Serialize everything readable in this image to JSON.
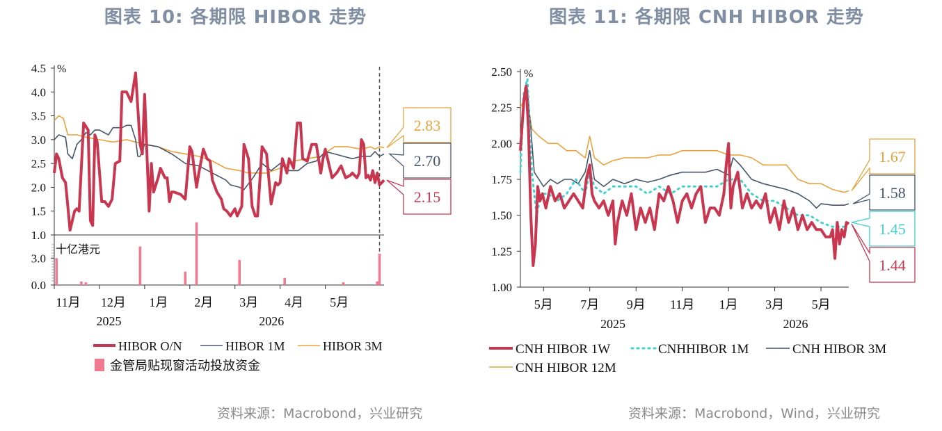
{
  "left": {
    "title": "图表  10:  各期限 HIBOR 走势",
    "source": "资料来源：Macrobond，兴业研究",
    "chart_data": {
      "type": "line",
      "ylabel_unit": "%",
      "ylim": [
        1.0,
        4.5
      ],
      "yticks": [
        "4.5",
        "4.0",
        "3.5",
        "3.0",
        "2.5",
        "2.0",
        "1.5",
        "1.0"
      ],
      "xlim": [
        0,
        7.3
      ],
      "x_axis_note": "x = months elapsed since the 11月 2025 tick",
      "months": [
        {
          "label": "11月",
          "x": 0
        },
        {
          "label": "12月",
          "x": 1
        },
        {
          "label": "1月",
          "x": 2
        },
        {
          "label": "2月",
          "x": 3
        },
        {
          "label": "3月",
          "x": 4
        },
        {
          "label": "4月",
          "x": 5
        },
        {
          "label": "5月",
          "x": 6
        }
      ],
      "years": [
        {
          "label": "2025",
          "x": 0.9
        },
        {
          "label": "2026",
          "x": 4.5
        }
      ],
      "vline_x": 7.2,
      "series": [
        {
          "name": "HIBOR O/N",
          "color": "#c8374f",
          "width": 4,
          "x": [
            0,
            0.05,
            0.1,
            0.18,
            0.25,
            0.3,
            0.35,
            0.45,
            0.5,
            0.55,
            0.65,
            0.75,
            0.8,
            0.85,
            0.9,
            0.95,
            1.05,
            1.12,
            1.2,
            1.28,
            1.35,
            1.45,
            1.5,
            1.6,
            1.7,
            1.8,
            1.9,
            1.95,
            2.0,
            2.1,
            2.15,
            2.2,
            2.3,
            2.35,
            2.45,
            2.5,
            2.55,
            2.6,
            2.65,
            2.8,
            2.9,
            3.0,
            3.05,
            3.15,
            3.2,
            3.3,
            3.38,
            3.45,
            3.5,
            3.6,
            3.7,
            3.75,
            3.82,
            3.9,
            4.0,
            4.05,
            4.15,
            4.2,
            4.3,
            4.38,
            4.45,
            4.5,
            4.6,
            4.7,
            4.8,
            4.9,
            4.95,
            5.0,
            5.05,
            5.15,
            5.2,
            5.3,
            5.38,
            5.45,
            5.5,
            5.6,
            5.7,
            5.8,
            5.9,
            5.95,
            6.0,
            6.15,
            6.25,
            6.35,
            6.45,
            6.55,
            6.6,
            6.7,
            6.75,
            6.8,
            6.85,
            6.9,
            6.95,
            7.0,
            7.05,
            7.1,
            7.15,
            7.2,
            7.25,
            7.3
          ],
          "y": [
            2.3,
            2.7,
            2.6,
            2.2,
            2.1,
            1.6,
            1.1,
            1.5,
            1.55,
            1.5,
            3.35,
            3.2,
            1.3,
            1.2,
            3.1,
            2.95,
            1.7,
            1.7,
            1.6,
            1.75,
            2.5,
            2.55,
            4.0,
            4.0,
            3.8,
            4.4,
            2.9,
            2.7,
            3.95,
            1.5,
            2.5,
            1.9,
            2.2,
            2.4,
            2.2,
            2.2,
            1.7,
            1.9,
            1.9,
            1.85,
            1.75,
            2.85,
            2.75,
            2.0,
            2.3,
            2.8,
            2.6,
            2.55,
            2.15,
            1.9,
            1.75,
            1.55,
            1.5,
            1.4,
            1.55,
            1.4,
            1.6,
            2.9,
            2.6,
            1.6,
            1.4,
            1.4,
            2.85,
            2.7,
            1.65,
            2.1,
            2.05,
            2.1,
            2.6,
            2.3,
            2.6,
            2.4,
            3.35,
            3.35,
            2.6,
            2.55,
            2.9,
            2.9,
            2.3,
            2.6,
            2.8,
            2.2,
            2.3,
            2.45,
            2.2,
            2.25,
            2.3,
            2.2,
            2.3,
            3.0,
            2.9,
            2.2,
            2.25,
            2.15,
            2.35,
            2.1,
            2.3,
            2.05,
            2.1,
            2.15
          ]
        },
        {
          "name": "HIBOR 1M",
          "color": "#44546a",
          "width": 1.6,
          "x": [
            0,
            0.1,
            0.25,
            0.3,
            0.4,
            0.5,
            0.6,
            0.7,
            0.8,
            0.9,
            1.0,
            1.2,
            1.3,
            1.5,
            1.6,
            1.7,
            1.8,
            1.85,
            1.9,
            2.0,
            2.3,
            2.6,
            2.9,
            3.2,
            3.5,
            3.8,
            3.9,
            4.1,
            4.2,
            4.4,
            4.6,
            4.8,
            5.0,
            5.2,
            5.4,
            5.6,
            5.8,
            6.0,
            6.2,
            6.4,
            6.6,
            6.8,
            7.0,
            7.1,
            7.2,
            7.3
          ],
          "y": [
            3.0,
            3.1,
            3.05,
            2.7,
            2.6,
            2.9,
            3.0,
            3.15,
            3.1,
            3.2,
            3.2,
            3.1,
            3.25,
            3.25,
            3.3,
            3.3,
            3.0,
            2.65,
            2.65,
            2.9,
            2.85,
            2.7,
            2.5,
            2.45,
            2.3,
            2.15,
            2.05,
            2.0,
            1.95,
            2.2,
            2.5,
            2.35,
            2.5,
            2.35,
            2.35,
            2.5,
            2.55,
            2.75,
            2.7,
            2.65,
            2.6,
            2.65,
            2.65,
            2.75,
            2.65,
            2.7
          ]
        },
        {
          "name": "HIBOR 3M",
          "color": "#e9a23b",
          "width": 1.6,
          "x": [
            0,
            0.1,
            0.2,
            0.3,
            0.5,
            0.7,
            1.0,
            1.3,
            1.6,
            1.8,
            2.0,
            2.3,
            2.6,
            2.9,
            3.2,
            3.5,
            3.8,
            4.1,
            4.3,
            4.5,
            4.7,
            5.0,
            5.3,
            5.6,
            5.9,
            6.2,
            6.5,
            6.8,
            7.0,
            7.1,
            7.2,
            7.3
          ],
          "y": [
            3.4,
            3.5,
            3.45,
            3.1,
            3.1,
            3.05,
            3.0,
            2.95,
            3.0,
            2.95,
            2.9,
            2.85,
            2.75,
            2.7,
            2.65,
            2.55,
            2.4,
            2.35,
            2.3,
            2.3,
            2.3,
            2.4,
            2.55,
            2.6,
            2.65,
            2.85,
            2.85,
            2.8,
            2.85,
            2.8,
            2.85,
            2.83
          ]
        }
      ],
      "labels": [
        {
          "text": "2.83",
          "color": "#e9a23b",
          "value": 2.83
        },
        {
          "text": "2.70",
          "color": "#44546a",
          "value": 2.7
        },
        {
          "text": "2.15",
          "color": "#c8374f",
          "value": 2.15
        }
      ],
      "sub": {
        "ylabel_unit": "十亿港元",
        "ylim": [
          0,
          4.5
        ],
        "yticks": [
          "3.0",
          "0.0"
        ],
        "color": "#f27a90",
        "bars_x": [
          0.05,
          0.6,
          0.7,
          1.9,
          2.9,
          3.15,
          4.1,
          5.1,
          6.4,
          7.15,
          7.2
        ],
        "bars_v": [
          3.0,
          0.4,
          0.3,
          4.3,
          1.5,
          7.0,
          2.8,
          0.8,
          0.3,
          0.4,
          3.5
        ]
      },
      "legend": [
        "HIBOR O/N",
        "HIBOR 1M",
        "HIBOR 3M",
        "金管局贴现窗活动投放资金"
      ]
    }
  },
  "right": {
    "title": "图表  11:  各期限 CNH HIBOR 走势",
    "source": "资料来源：Macrobond，Wind，兴业研究",
    "chart_data": {
      "type": "line",
      "ylabel_unit": "%",
      "ylim": [
        1.0,
        2.5
      ],
      "yticks": [
        "2.50",
        "2.25",
        "2.00",
        "1.75",
        "1.50",
        "1.25",
        "1.00"
      ],
      "xlim": [
        0,
        14.2
      ],
      "x_axis_note": "x = months elapsed since the start of April 2025",
      "months": [
        {
          "label": "5月",
          "x": 1
        },
        {
          "label": "7月",
          "x": 3
        },
        {
          "label": "9月",
          "x": 5
        },
        {
          "label": "11月",
          "x": 7
        },
        {
          "label": "1月",
          "x": 9
        },
        {
          "label": "3月",
          "x": 11
        },
        {
          "label": "5月",
          "x": 13
        }
      ],
      "years": [
        {
          "label": "2025",
          "x": 4
        },
        {
          "label": "2026",
          "x": 11.9
        }
      ],
      "series": [
        {
          "name": "CNH HIBOR 1W",
          "color": "#c8374f",
          "width": 4,
          "x": [
            0,
            0.15,
            0.25,
            0.35,
            0.45,
            0.55,
            0.65,
            0.75,
            0.85,
            0.95,
            1.1,
            1.3,
            1.5,
            1.7,
            1.9,
            2.1,
            2.3,
            2.5,
            2.7,
            2.85,
            3.0,
            3.1,
            3.2,
            3.4,
            3.6,
            3.8,
            4.0,
            4.1,
            4.2,
            4.4,
            4.6,
            4.8,
            5.0,
            5.2,
            5.4,
            5.6,
            5.8,
            6.0,
            6.2,
            6.4,
            6.6,
            6.8,
            7.0,
            7.2,
            7.4,
            7.6,
            7.8,
            8.0,
            8.2,
            8.4,
            8.6,
            8.8,
            8.9,
            9.0,
            9.1,
            9.2,
            9.4,
            9.6,
            9.8,
            10.0,
            10.2,
            10.4,
            10.6,
            10.8,
            11.0,
            11.2,
            11.4,
            11.6,
            11.8,
            12.0,
            12.2,
            12.4,
            12.6,
            12.8,
            13.0,
            13.2,
            13.4,
            13.5,
            13.6,
            13.7,
            13.8,
            13.9,
            14.0,
            14.1,
            14.2
          ],
          "y": [
            1.95,
            2.3,
            2.4,
            2.1,
            1.5,
            1.15,
            1.3,
            1.7,
            1.6,
            1.65,
            1.55,
            1.7,
            1.6,
            1.65,
            1.55,
            1.6,
            1.65,
            1.6,
            1.55,
            1.75,
            1.85,
            1.65,
            1.6,
            1.55,
            1.6,
            1.5,
            1.6,
            1.3,
            1.45,
            1.6,
            1.5,
            1.65,
            1.4,
            1.55,
            1.45,
            1.55,
            1.4,
            1.65,
            1.6,
            1.7,
            1.6,
            1.45,
            1.6,
            1.65,
            1.55,
            1.65,
            1.7,
            1.45,
            1.55,
            1.55,
            1.5,
            1.65,
            1.85,
            2.0,
            1.55,
            1.7,
            1.8,
            1.55,
            1.65,
            1.55,
            1.6,
            1.55,
            1.65,
            1.45,
            1.55,
            1.4,
            1.6,
            1.45,
            1.55,
            1.4,
            1.5,
            1.4,
            1.45,
            1.4,
            1.4,
            1.35,
            1.35,
            1.4,
            1.2,
            1.45,
            1.3,
            1.4,
            1.35,
            1.45,
            1.44
          ]
        },
        {
          "name": "CNHHIBOR 1M",
          "color": "#3fd0cf",
          "width": 3,
          "dash": "2 6",
          "x": [
            0,
            0.15,
            0.3,
            0.5,
            0.7,
            0.9,
            1.2,
            1.6,
            2.0,
            2.4,
            2.8,
            3.0,
            3.2,
            3.6,
            4.0,
            4.5,
            5.0,
            5.5,
            6.0,
            6.5,
            7.0,
            7.5,
            8.0,
            8.5,
            9.0,
            9.2,
            9.5,
            10.0,
            10.5,
            11.0,
            11.5,
            12.0,
            12.5,
            13.0,
            13.5,
            14.0,
            14.2
          ],
          "y": [
            1.8,
            2.35,
            2.45,
            1.8,
            1.5,
            1.65,
            1.65,
            1.6,
            1.65,
            1.75,
            1.65,
            1.8,
            1.7,
            1.65,
            1.7,
            1.7,
            1.7,
            1.65,
            1.7,
            1.65,
            1.7,
            1.7,
            1.7,
            1.7,
            1.75,
            1.75,
            1.75,
            1.65,
            1.6,
            1.6,
            1.55,
            1.5,
            1.5,
            1.45,
            1.42,
            1.42,
            1.45
          ]
        },
        {
          "name": "CNH HIBOR 3M",
          "color": "#44546a",
          "width": 1.6,
          "x": [
            0,
            0.15,
            0.3,
            0.45,
            0.6,
            0.8,
            1.0,
            1.3,
            1.6,
            1.9,
            2.2,
            2.5,
            2.8,
            3.0,
            3.2,
            3.6,
            4.0,
            4.5,
            5.0,
            5.5,
            6.0,
            6.5,
            7.0,
            7.5,
            8.0,
            8.5,
            9.0,
            9.2,
            9.5,
            10.0,
            10.5,
            11.0,
            11.5,
            12.0,
            12.5,
            12.8,
            13.0,
            13.5,
            14.0,
            14.2
          ],
          "y": [
            2.0,
            2.3,
            2.38,
            2.1,
            1.8,
            1.75,
            1.7,
            1.75,
            1.72,
            1.75,
            1.75,
            1.72,
            1.8,
            1.95,
            1.75,
            1.7,
            1.75,
            1.72,
            1.75,
            1.73,
            1.75,
            1.78,
            1.8,
            1.8,
            1.8,
            1.82,
            1.78,
            1.9,
            1.85,
            1.75,
            1.72,
            1.7,
            1.68,
            1.65,
            1.6,
            1.55,
            1.58,
            1.57,
            1.57,
            1.58
          ]
        },
        {
          "name": "CNH HIBOR 12M",
          "color": "#e9a23b",
          "width": 1.6,
          "x": [
            0,
            0.15,
            0.3,
            0.5,
            0.8,
            1.2,
            1.6,
            2.0,
            2.4,
            2.8,
            3.0,
            3.2,
            3.6,
            4.0,
            4.5,
            5.0,
            5.5,
            6.0,
            6.5,
            7.0,
            7.5,
            8.0,
            8.5,
            9.0,
            9.5,
            10.0,
            10.5,
            11.0,
            11.5,
            12.0,
            12.5,
            13.0,
            13.5,
            14.0,
            14.2
          ],
          "y": [
            2.25,
            2.3,
            2.3,
            2.1,
            2.05,
            2.0,
            2.0,
            1.95,
            1.95,
            1.9,
            2.05,
            1.9,
            1.85,
            1.88,
            1.9,
            1.9,
            1.9,
            1.92,
            1.92,
            1.95,
            1.95,
            1.95,
            1.95,
            1.92,
            1.92,
            1.9,
            1.85,
            1.85,
            1.85,
            1.75,
            1.72,
            1.72,
            1.68,
            1.66,
            1.67
          ]
        }
      ],
      "labels": [
        {
          "text": "1.67",
          "color": "#e9a23b",
          "value": 1.67
        },
        {
          "text": "1.58",
          "color": "#44546a",
          "value": 1.58
        },
        {
          "text": "1.45",
          "color": "#3fd0cf",
          "value": 1.45
        },
        {
          "text": "1.44",
          "color": "#c8374f",
          "value": 1.44
        }
      ],
      "legend": [
        "CNH HIBOR 1W",
        "CNHHIBOR 1M",
        "CNH HIBOR 3M",
        "CNH HIBOR 12M"
      ]
    }
  }
}
